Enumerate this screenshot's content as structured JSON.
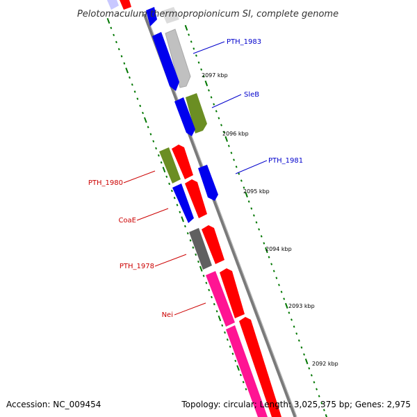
{
  "header": {
    "title": "Pelotomaculum thermopropionicum SI, complete genome"
  },
  "footer": {
    "accession": "Accession: NC_009454",
    "summary": "Topology: circular; Length: 3,025,375 bp; Genes: 2,975"
  },
  "colors": {
    "forward_label": "#0000cc",
    "reverse_label": "#cc0000",
    "tick": "#007700",
    "backbone": "#888888",
    "gene_blue": "#0000ee",
    "gene_red": "#ff0000",
    "gene_olive": "#6b8e23",
    "gene_grey": "#c0c0c0",
    "gene_dark": "#606060",
    "gene_pink": "#ff1493"
  },
  "ticks": [
    {
      "label": "2097 kbp"
    },
    {
      "label": "2096 kbp"
    },
    {
      "label": "2095 kbp"
    },
    {
      "label": "2094 kbp"
    },
    {
      "label": "2093 kbp"
    },
    {
      "label": "2092 kbp"
    }
  ],
  "gene_labels": [
    {
      "name": "PTH_1983",
      "strand": "forward"
    },
    {
      "name": "SleB",
      "strand": "forward"
    },
    {
      "name": "PTH_1981",
      "strand": "forward"
    },
    {
      "name": "PTH_1980",
      "strand": "reverse"
    },
    {
      "name": "CoaE",
      "strand": "reverse"
    },
    {
      "name": "PTH_1978",
      "strand": "reverse"
    },
    {
      "name": "Nei",
      "strand": "reverse"
    }
  ]
}
